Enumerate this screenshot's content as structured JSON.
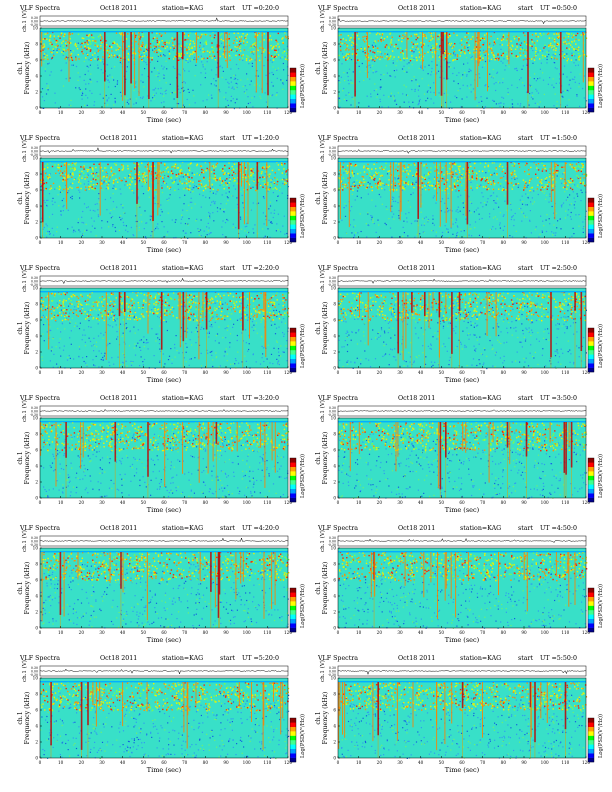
{
  "chart_data": {
    "type": "heatmap",
    "title_prefix": "VLF Spectra",
    "date": "Oct18 2011",
    "station": "station=KAG",
    "start_label": "start",
    "panels": [
      {
        "ut": "UT =0:20:0",
        "column": "left",
        "row": 0
      },
      {
        "ut": "UT =0:50:0",
        "column": "right",
        "row": 0
      },
      {
        "ut": "UT =1:20:0",
        "column": "left",
        "row": 1
      },
      {
        "ut": "UT =1:50:0",
        "column": "right",
        "row": 1
      },
      {
        "ut": "UT =2:20:0",
        "column": "left",
        "row": 2
      },
      {
        "ut": "UT =2:50:0",
        "column": "right",
        "row": 2
      },
      {
        "ut": "UT =3:20:0",
        "column": "left",
        "row": 3
      },
      {
        "ut": "UT =3:50:0",
        "column": "right",
        "row": 3
      },
      {
        "ut": "UT =4:20:0",
        "column": "left",
        "row": 4
      },
      {
        "ut": "UT =4:50:0",
        "column": "right",
        "row": 4
      },
      {
        "ut": "UT =5:20:0",
        "column": "left",
        "row": 5
      },
      {
        "ut": "UT =5:50:0",
        "column": "right",
        "row": 5
      }
    ],
    "xlabel": "Time (sec)",
    "xlim": [
      0,
      120
    ],
    "xticks": [
      "0",
      "10",
      "20",
      "30",
      "40",
      "50",
      "60",
      "70",
      "80",
      "90",
      "100",
      "110",
      "120"
    ],
    "ylabel_top": "ch.1",
    "ylabel": "Frequency (kHz)",
    "ylim": [
      0,
      10
    ],
    "yticks": [
      "0",
      "2",
      "4",
      "6",
      "8",
      "10"
    ],
    "ts_label": "ch.1 (V)",
    "ts_ticks": [
      "0.30",
      "0.00",
      "-0.30"
    ],
    "colorbar_label": "Log(PSD(V²/Hz))",
    "colormap": [
      "#00008b",
      "#0000ff",
      "#00a0ff",
      "#00ffff",
      "#40ff90",
      "#00ff00",
      "#ffff00",
      "#ffa000",
      "#ff0000",
      "#8b0000"
    ]
  }
}
